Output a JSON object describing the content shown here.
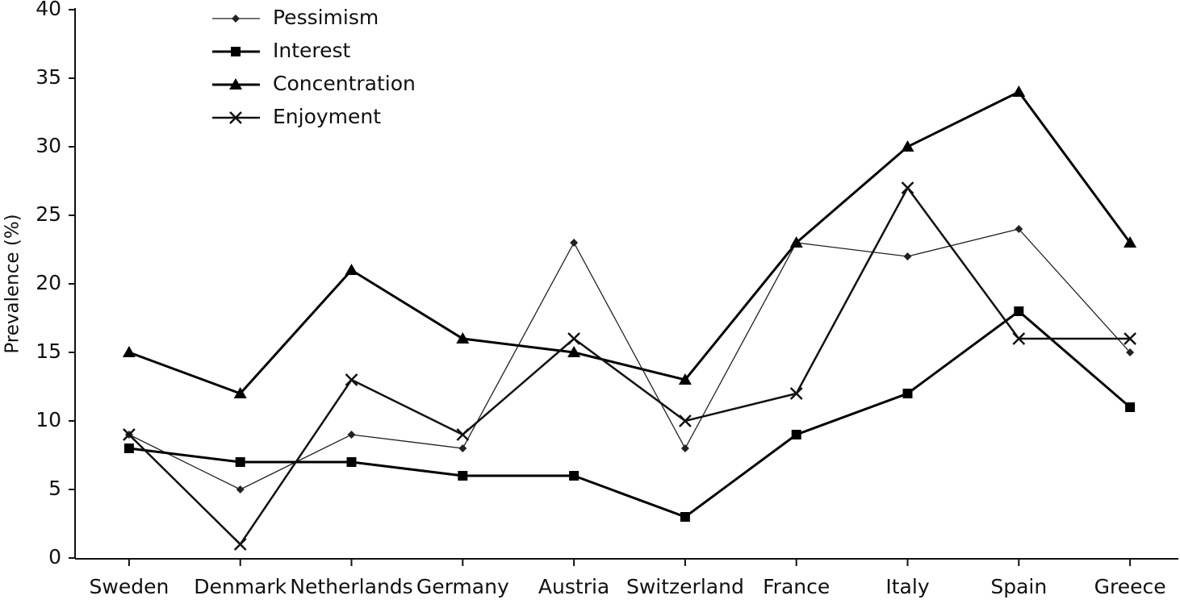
{
  "chart_data": {
    "type": "line",
    "y_label": "Prevalence (%)",
    "categories": [
      "Sweden",
      "Denmark",
      "Netherlands",
      "Germany",
      "Austria",
      "Switzerland",
      "France",
      "Italy",
      "Spain",
      "Greece"
    ],
    "series": [
      {
        "name": "Pessimism",
        "color": "#222222",
        "marker": "diamond",
        "line_width": 1.3,
        "values": [
          9,
          5,
          9,
          8,
          23,
          8,
          23,
          22,
          24,
          15
        ]
      },
      {
        "name": "Interest",
        "color": "#000000",
        "marker": "square",
        "line_width": 3,
        "values": [
          8,
          7,
          7,
          6,
          6,
          3,
          9,
          12,
          18,
          11
        ]
      },
      {
        "name": "Concentration",
        "color": "#000000",
        "marker": "triangle",
        "line_width": 3,
        "values": [
          15,
          12,
          21,
          16,
          15,
          13,
          23,
          30,
          34,
          23
        ]
      },
      {
        "name": "Enjoyment",
        "color": "#111111",
        "marker": "x",
        "line_width": 2.5,
        "values": [
          9,
          1,
          13,
          9,
          16,
          10,
          12,
          27,
          16,
          16
        ]
      }
    ],
    "ylim": [
      0,
      40
    ],
    "yticks": [
      0,
      5,
      10,
      15,
      20,
      25,
      30,
      35,
      40
    ],
    "grid": false
  }
}
